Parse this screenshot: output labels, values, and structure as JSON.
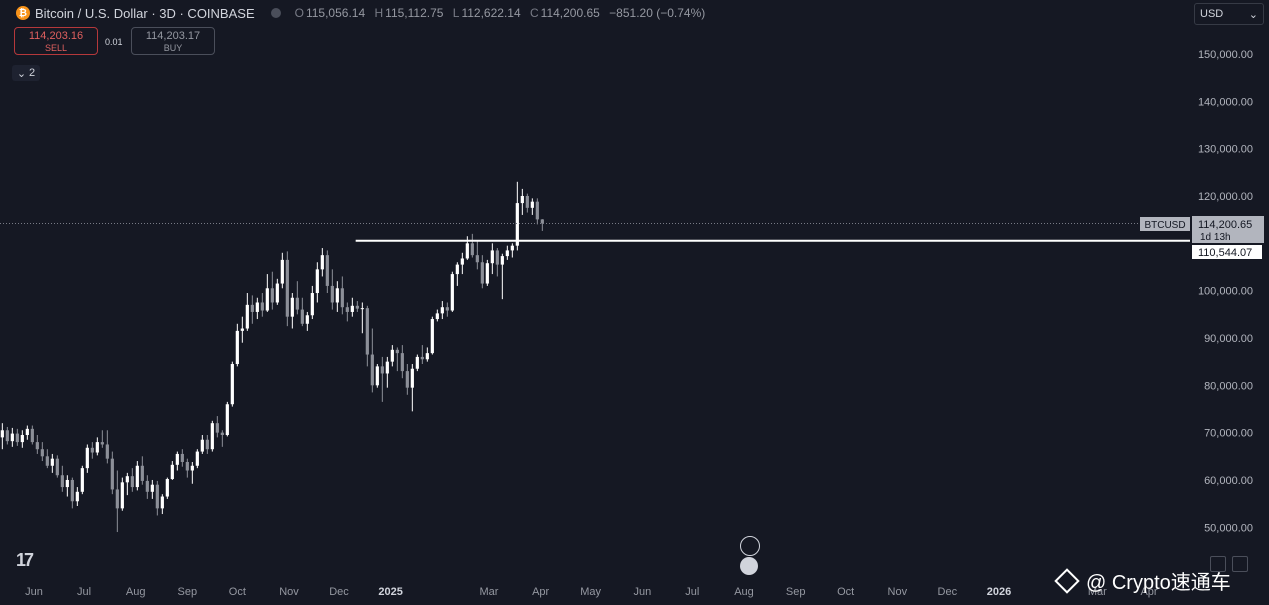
{
  "header": {
    "symbol_title": "Bitcoin / U.S. Dollar · 3D · COINBASE",
    "logo_glyph": "₿",
    "ohlc": [
      {
        "key": "O",
        "value": "115,056.14"
      },
      {
        "key": "H",
        "value": "115,112.75"
      },
      {
        "key": "L",
        "value": "112,622.14"
      },
      {
        "key": "C",
        "value": "114,200.65"
      },
      {
        "key": "",
        "value": "−851.20 (−0.74%)"
      }
    ]
  },
  "trade": {
    "sell_price": "114,203.16",
    "sell_label": "SELL",
    "spread": "0.01",
    "buy_price": "114,203.17",
    "buy_label": "BUY"
  },
  "indicators_toggle": {
    "count": "2",
    "icon": "chevron-down-icon"
  },
  "currency_select": {
    "value": "USD"
  },
  "price_axis": {
    "ticks": [
      {
        "value": 150000,
        "label": "150,000.00"
      },
      {
        "value": 140000,
        "label": "140,000.00"
      },
      {
        "value": 130000,
        "label": "130,000.00"
      },
      {
        "value": 120000,
        "label": "120,000.00"
      },
      {
        "value": 100000,
        "label": "100,000.00"
      },
      {
        "value": 90000,
        "label": "90,000.00"
      },
      {
        "value": 80000,
        "label": "80,000.00"
      },
      {
        "value": 70000,
        "label": "70,000.00"
      },
      {
        "value": 60000,
        "label": "60,000.00"
      },
      {
        "value": 50000,
        "label": "50,000.00"
      }
    ],
    "last_price_symbol": "BTCUSD",
    "last_price_label": "114,200.65",
    "countdown": "1d 13h",
    "hline_label": "110,544.07"
  },
  "watermark": {
    "text": "@ Crypto速通车"
  },
  "chart_data": {
    "type": "candlestick",
    "title": "Bitcoin / U.S. Dollar · 3D · COINBASE",
    "interval": "3D",
    "ylim": [
      45000,
      158000
    ],
    "grid": false,
    "last_close": 114200.65,
    "horizontal_line": {
      "value": 110544.07,
      "from": "2024-12-11",
      "color": "#ffffff"
    },
    "x_ticks": [
      {
        "date": "2024-06-01",
        "label": "Jun"
      },
      {
        "date": "2024-07-01",
        "label": "Jul"
      },
      {
        "date": "2024-08-01",
        "label": "Aug"
      },
      {
        "date": "2024-09-01",
        "label": "Sep"
      },
      {
        "date": "2024-10-01",
        "label": "Oct"
      },
      {
        "date": "2024-11-01",
        "label": "Nov"
      },
      {
        "date": "2024-12-01",
        "label": "Dec"
      },
      {
        "date": "2025-01-01",
        "label": "2025",
        "bold": true
      },
      {
        "date": "2025-03-01",
        "label": "Mar"
      },
      {
        "date": "2025-04-01",
        "label": "Apr"
      },
      {
        "date": "2025-05-01",
        "label": "May"
      },
      {
        "date": "2025-06-01",
        "label": "Jun"
      },
      {
        "date": "2025-07-01",
        "label": "Jul"
      },
      {
        "date": "2025-08-01",
        "label": "Aug"
      },
      {
        "date": "2025-09-01",
        "label": "Sep"
      },
      {
        "date": "2025-10-01",
        "label": "Oct"
      },
      {
        "date": "2025-11-01",
        "label": "Nov"
      },
      {
        "date": "2025-12-01",
        "label": "Dec"
      },
      {
        "date": "2026-01-01",
        "label": "2026",
        "bold": true
      },
      {
        "date": "2026-03-01",
        "label": "Mar"
      },
      {
        "date": "2026-04-01",
        "label": "Apr"
      }
    ],
    "start_date": "2024-05-13",
    "step_days": 3,
    "candles": [
      [
        69000,
        72000,
        66500,
        70500
      ],
      [
        70500,
        71200,
        67500,
        68200
      ],
      [
        68200,
        71000,
        67000,
        69800
      ],
      [
        69800,
        70800,
        67200,
        68000
      ],
      [
        68000,
        70500,
        66800,
        69500
      ],
      [
        69500,
        71500,
        68500,
        70800
      ],
      [
        70800,
        71500,
        67500,
        68000
      ],
      [
        68000,
        69500,
        65500,
        66500
      ],
      [
        66500,
        68000,
        64000,
        65000
      ],
      [
        65000,
        66500,
        62500,
        63000
      ],
      [
        63000,
        65500,
        61500,
        64500
      ],
      [
        64500,
        65200,
        60500,
        61000
      ],
      [
        61000,
        63000,
        57500,
        58500
      ],
      [
        58500,
        61000,
        56500,
        60000
      ],
      [
        60000,
        60500,
        54000,
        55500
      ],
      [
        55500,
        58500,
        54500,
        57500
      ],
      [
        57500,
        63000,
        57000,
        62500
      ],
      [
        62500,
        67500,
        61500,
        66800
      ],
      [
        66800,
        68000,
        64500,
        65800
      ],
      [
        65800,
        69000,
        65200,
        68000
      ],
      [
        68000,
        70500,
        66800,
        67500
      ],
      [
        67500,
        70500,
        63500,
        64500
      ],
      [
        64500,
        66000,
        57000,
        58000
      ],
      [
        58000,
        62000,
        49000,
        54000
      ],
      [
        54000,
        60500,
        53500,
        59500
      ],
      [
        59500,
        61500,
        56800,
        60800
      ],
      [
        60800,
        62500,
        57500,
        58500
      ],
      [
        58500,
        64000,
        57800,
        63000
      ],
      [
        63000,
        65000,
        59000,
        59800
      ],
      [
        59800,
        61000,
        56000,
        57500
      ],
      [
        57500,
        60000,
        56000,
        59000
      ],
      [
        59000,
        59800,
        52500,
        54000
      ],
      [
        54000,
        57000,
        52800,
        56500
      ],
      [
        56500,
        60500,
        56000,
        60200
      ],
      [
        60200,
        64000,
        60000,
        63200
      ],
      [
        63200,
        66000,
        62000,
        65500
      ],
      [
        65500,
        66500,
        62800,
        63800
      ],
      [
        63800,
        64500,
        60500,
        62000
      ],
      [
        62000,
        63800,
        59200,
        63000
      ],
      [
        63000,
        66500,
        62500,
        66000
      ],
      [
        66000,
        69500,
        65500,
        68500
      ],
      [
        68500,
        69500,
        65500,
        66500
      ],
      [
        66500,
        72500,
        66000,
        72000
      ],
      [
        72000,
        73500,
        69000,
        70000
      ],
      [
        70000,
        70500,
        67000,
        69500
      ],
      [
        69500,
        76500,
        69200,
        76000
      ],
      [
        76000,
        85000,
        75500,
        84500
      ],
      [
        84500,
        93000,
        84000,
        91500
      ],
      [
        91500,
        94500,
        89000,
        92000
      ],
      [
        92000,
        99500,
        91500,
        97000
      ],
      [
        97000,
        99000,
        93000,
        95500
      ],
      [
        95500,
        98500,
        94000,
        97500
      ],
      [
        97500,
        99500,
        94500,
        95800
      ],
      [
        95800,
        103500,
        95500,
        100500
      ],
      [
        100500,
        104000,
        96000,
        97500
      ],
      [
        97500,
        102500,
        97000,
        101500
      ],
      [
        101500,
        108000,
        100500,
        106500
      ],
      [
        106500,
        108300,
        92500,
        94500
      ],
      [
        94500,
        99500,
        92000,
        98500
      ],
      [
        98500,
        102000,
        95000,
        96000
      ],
      [
        96000,
        98500,
        92500,
        93000
      ],
      [
        93000,
        95500,
        91500,
        94800
      ],
      [
        94800,
        101000,
        94000,
        99500
      ],
      [
        99500,
        106000,
        97500,
        104500
      ],
      [
        104500,
        109000,
        103000,
        107500
      ],
      [
        107500,
        108500,
        99500,
        101000
      ],
      [
        101000,
        104500,
        96000,
        97500
      ],
      [
        97500,
        102000,
        95500,
        100500
      ],
      [
        100500,
        103000,
        95000,
        96500
      ],
      [
        96500,
        97500,
        93500,
        95500
      ],
      [
        95500,
        98500,
        94500,
        96800
      ],
      [
        96800,
        97800,
        95500,
        96200
      ],
      [
        96200,
        97500,
        91000,
        96300
      ],
      [
        96300,
        96800,
        84000,
        86500
      ],
      [
        86500,
        92000,
        78500,
        80000
      ],
      [
        80000,
        84500,
        79500,
        84000
      ],
      [
        84000,
        86000,
        76500,
        82500
      ],
      [
        82500,
        86000,
        79500,
        85000
      ],
      [
        85000,
        88500,
        84000,
        87500
      ],
      [
        87500,
        88000,
        83000,
        86800
      ],
      [
        86800,
        88500,
        81500,
        83000
      ],
      [
        83000,
        84500,
        78000,
        79500
      ],
      [
        79500,
        84500,
        74500,
        83500
      ],
      [
        83500,
        86500,
        83000,
        86000
      ],
      [
        86000,
        88500,
        84500,
        85500
      ],
      [
        85500,
        88000,
        85000,
        86800
      ],
      [
        86800,
        94500,
        86500,
        94000
      ],
      [
        94000,
        96000,
        93500,
        95200
      ],
      [
        95200,
        97800,
        94000,
        96500
      ],
      [
        96500,
        97500,
        94500,
        95800
      ],
      [
        95800,
        104000,
        95500,
        103500
      ],
      [
        103500,
        106000,
        101000,
        105500
      ],
      [
        105500,
        108000,
        103500,
        106800
      ],
      [
        106800,
        111500,
        106500,
        110000
      ],
      [
        110000,
        112000,
        107000,
        107500
      ],
      [
        107500,
        110500,
        104500,
        106000
      ],
      [
        106000,
        107500,
        100500,
        101500
      ],
      [
        101500,
        106500,
        101000,
        105800
      ],
      [
        105800,
        110000,
        103500,
        108500
      ],
      [
        108500,
        109000,
        103000,
        105500
      ],
      [
        105500,
        107800,
        98200,
        107300
      ],
      [
        107300,
        109500,
        106500,
        108500
      ],
      [
        108500,
        110000,
        107000,
        109500
      ],
      [
        109500,
        123000,
        108500,
        118500
      ],
      [
        118500,
        121500,
        116000,
        120000
      ],
      [
        120000,
        120500,
        116500,
        117500
      ],
      [
        117500,
        119500,
        116000,
        118800
      ],
      [
        118800,
        119500,
        114000,
        115056.14
      ],
      [
        115056.14,
        115112.75,
        112622.14,
        114200.65
      ]
    ]
  }
}
